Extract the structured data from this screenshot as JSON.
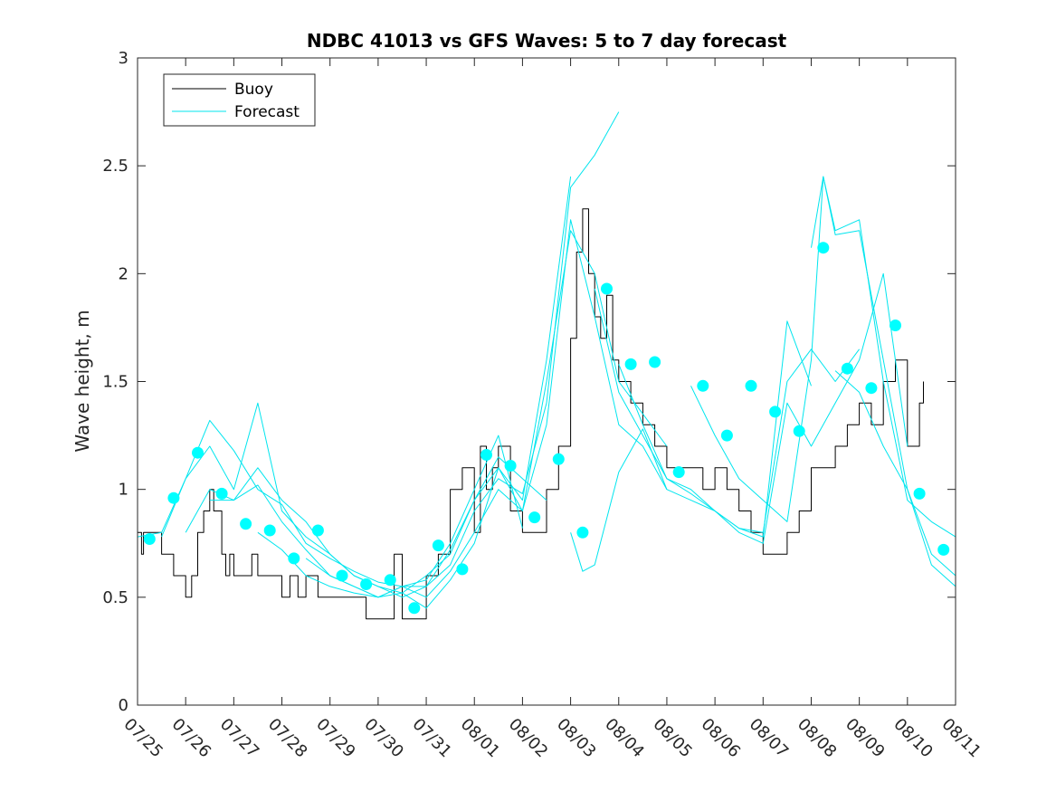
{
  "chart_data": {
    "type": "line",
    "title": "NDBC 41013 vs GFS Waves: 5 to 7 day forecast",
    "xlabel": "",
    "ylabel": "Wave height, m",
    "ylim": [
      0,
      3
    ],
    "xlim": [
      "2024-07-25",
      "2024-08-11"
    ],
    "x_tick_labels": [
      "07/25",
      "07/26",
      "07/27",
      "07/28",
      "07/29",
      "07/30",
      "07/31",
      "08/01",
      "08/02",
      "08/03",
      "08/04",
      "08/05",
      "08/06",
      "08/07",
      "08/08",
      "08/09",
      "08/10",
      "08/11"
    ],
    "y_ticks": [
      "0",
      "0.5",
      "1",
      "1.5",
      "2",
      "2.5",
      "3"
    ],
    "grid": false,
    "legend": {
      "position": "top-left",
      "entries": [
        "Buoy",
        "Forecast"
      ]
    },
    "colors": {
      "buoy": "#000000",
      "forecast": "#00e5ee",
      "marker": "#00ffff"
    },
    "series": [
      {
        "name": "Buoy",
        "x": [
          "2024-07-25 00:00",
          "2024-07-25 02:00",
          "2024-07-25 03:00",
          "2024-07-25 06:00",
          "2024-07-25 12:00",
          "2024-07-25 18:00",
          "2024-07-26 00:00",
          "2024-07-26 03:00",
          "2024-07-26 06:00",
          "2024-07-26 09:00",
          "2024-07-26 12:00",
          "2024-07-26 14:00",
          "2024-07-26 18:00",
          "2024-07-26 20:00",
          "2024-07-26 22:00",
          "2024-07-27 00:00",
          "2024-07-27 06:00",
          "2024-07-27 09:00",
          "2024-07-27 12:00",
          "2024-07-27 18:00",
          "2024-07-28 00:00",
          "2024-07-28 04:00",
          "2024-07-28 08:00",
          "2024-07-28 12:00",
          "2024-07-28 18:00",
          "2024-07-29 00:00",
          "2024-07-29 12:00",
          "2024-07-29 18:00",
          "2024-07-30 00:00",
          "2024-07-30 06:00",
          "2024-07-30 08:00",
          "2024-07-30 12:00",
          "2024-07-30 18:00",
          "2024-07-31 00:00",
          "2024-07-31 06:00",
          "2024-07-31 12:00",
          "2024-07-31 18:00",
          "2024-08-01 00:00",
          "2024-08-01 03:00",
          "2024-08-01 06:00",
          "2024-08-01 09:00",
          "2024-08-01 12:00",
          "2024-08-01 18:00",
          "2024-08-02 00:00",
          "2024-08-02 06:00",
          "2024-08-02 12:00",
          "2024-08-02 18:00",
          "2024-08-03 00:00",
          "2024-08-03 03:00",
          "2024-08-03 06:00",
          "2024-08-03 09:00",
          "2024-08-03 12:00",
          "2024-08-03 15:00",
          "2024-08-03 18:00",
          "2024-08-03 21:00",
          "2024-08-04 00:00",
          "2024-08-04 06:00",
          "2024-08-04 12:00",
          "2024-08-04 18:00",
          "2024-08-05 00:00",
          "2024-08-05 06:00",
          "2024-08-05 12:00",
          "2024-08-05 18:00",
          "2024-08-06 00:00",
          "2024-08-06 06:00",
          "2024-08-06 12:00",
          "2024-08-06 18:00",
          "2024-08-07 00:00",
          "2024-08-07 06:00",
          "2024-08-07 12:00",
          "2024-08-07 18:00",
          "2024-08-08 00:00",
          "2024-08-08 06:00",
          "2024-08-08 12:00",
          "2024-08-08 18:00",
          "2024-08-09 00:00",
          "2024-08-09 06:00",
          "2024-08-09 12:00",
          "2024-08-09 18:00",
          "2024-08-10 00:00",
          "2024-08-10 06:00",
          "2024-08-10 08:00"
        ],
        "values": [
          0.8,
          0.7,
          0.8,
          0.8,
          0.7,
          0.6,
          0.5,
          0.6,
          0.8,
          0.9,
          1.0,
          0.9,
          0.7,
          0.6,
          0.7,
          0.6,
          0.6,
          0.7,
          0.6,
          0.6,
          0.5,
          0.6,
          0.5,
          0.6,
          0.5,
          0.5,
          0.5,
          0.4,
          0.4,
          0.4,
          0.7,
          0.4,
          0.4,
          0.6,
          0.7,
          1.0,
          1.1,
          0.8,
          1.2,
          1.0,
          1.1,
          1.2,
          0.9,
          0.8,
          0.8,
          1.0,
          1.2,
          1.7,
          2.1,
          2.3,
          2.0,
          1.8,
          1.7,
          1.9,
          1.6,
          1.5,
          1.4,
          1.3,
          1.2,
          1.1,
          1.1,
          1.1,
          1.0,
          1.1,
          1.0,
          0.9,
          0.8,
          0.7,
          0.7,
          0.8,
          0.9,
          1.1,
          1.1,
          1.2,
          1.3,
          1.4,
          1.3,
          1.5,
          1.6,
          1.2,
          1.4,
          1.5
        ]
      },
      {
        "name": "Forecast",
        "x": [
          "2024-07-25 00:00",
          "2024-07-25 12:00",
          "2024-07-26 00:00",
          "2024-07-26 12:00",
          "2024-07-27 00:00",
          "2024-07-27 12:00",
          "2024-07-28 00:00",
          "2024-07-28 12:00",
          "2024-07-29 00:00",
          "2024-07-29 12:00",
          "2024-07-30 00:00",
          "2024-07-30 12:00",
          "2024-07-31 00:00",
          "2024-07-31 12:00",
          "2024-08-01 00:00",
          "2024-08-01 12:00",
          "2024-08-02 00:00"
        ],
        "values": [
          0.78,
          0.8,
          1.05,
          1.32,
          1.18,
          1.0,
          0.93,
          0.75,
          0.68,
          0.62,
          0.57,
          0.55,
          0.58,
          0.75,
          1.0,
          1.25,
          0.82
        ]
      },
      {
        "name": "Forecast",
        "x": [
          "2024-07-25 12:00",
          "2024-07-26 00:00",
          "2024-07-26 12:00",
          "2024-07-27 00:00",
          "2024-07-27 12:00",
          "2024-07-28 00:00",
          "2024-07-28 12:00",
          "2024-07-29 00:00",
          "2024-07-29 12:00",
          "2024-07-30 00:00",
          "2024-07-30 12:00",
          "2024-07-31 00:00",
          "2024-07-31 12:00",
          "2024-08-01 00:00",
          "2024-08-01 12:00",
          "2024-08-02 00:00",
          "2024-08-02 12:00"
        ],
        "values": [
          0.78,
          1.05,
          1.2,
          1.0,
          1.4,
          0.9,
          0.78,
          0.7,
          0.6,
          0.55,
          0.52,
          0.6,
          0.7,
          0.95,
          1.15,
          1.05,
          0.95
        ]
      },
      {
        "name": "Forecast",
        "x": [
          "2024-07-26 00:00",
          "2024-07-26 12:00",
          "2024-07-27 00:00",
          "2024-07-27 12:00",
          "2024-07-28 00:00",
          "2024-07-28 12:00",
          "2024-07-29 00:00",
          "2024-07-29 12:00",
          "2024-07-30 00:00",
          "2024-07-30 12:00",
          "2024-07-31 00:00",
          "2024-07-31 12:00",
          "2024-08-01 00:00",
          "2024-08-01 12:00",
          "2024-08-02 00:00",
          "2024-08-02 12:00",
          "2024-08-03 00:00"
        ],
        "values": [
          0.8,
          1.0,
          0.95,
          1.1,
          0.95,
          0.85,
          0.7,
          0.6,
          0.55,
          0.5,
          0.55,
          0.72,
          0.95,
          1.1,
          0.95,
          1.6,
          2.45
        ]
      },
      {
        "name": "Forecast",
        "x": [
          "2024-07-26 12:00",
          "2024-07-27 00:00",
          "2024-07-27 12:00",
          "2024-07-28 00:00",
          "2024-07-28 12:00",
          "2024-07-29 00:00",
          "2024-07-29 12:00",
          "2024-07-30 00:00",
          "2024-07-30 12:00",
          "2024-07-31 00:00",
          "2024-07-31 12:00",
          "2024-08-01 00:00",
          "2024-08-01 12:00",
          "2024-08-02 00:00",
          "2024-08-02 12:00",
          "2024-08-03 00:00",
          "2024-08-03 12:00",
          "2024-08-04 00:00"
        ],
        "values": [
          0.95,
          0.95,
          1.02,
          0.85,
          0.72,
          0.6,
          0.55,
          0.5,
          0.55,
          0.55,
          0.65,
          0.9,
          1.05,
          0.98,
          1.4,
          2.4,
          2.55,
          2.75
        ]
      },
      {
        "name": "Forecast",
        "x": [
          "2024-07-27 12:00",
          "2024-07-28 00:00",
          "2024-07-28 12:00",
          "2024-07-29 00:00",
          "2024-07-29 12:00",
          "2024-07-30 00:00",
          "2024-07-30 12:00",
          "2024-07-31 00:00",
          "2024-07-31 12:00",
          "2024-08-01 00:00",
          "2024-08-01 12:00",
          "2024-08-02 00:00",
          "2024-08-02 12:00",
          "2024-08-03 00:00",
          "2024-08-03 12:00",
          "2024-08-04 00:00",
          "2024-08-04 12:00",
          "2024-08-05 00:00"
        ],
        "values": [
          0.8,
          0.72,
          0.6,
          0.55,
          0.52,
          0.5,
          0.55,
          0.5,
          0.62,
          0.8,
          1.0,
          0.9,
          1.5,
          2.2,
          2.0,
          1.5,
          1.35,
          1.2
        ]
      },
      {
        "name": "Forecast",
        "x": [
          "2024-07-28 12:00",
          "2024-07-29 00:00",
          "2024-07-29 12:00",
          "2024-07-30 00:00",
          "2024-07-30 12:00",
          "2024-07-31 00:00",
          "2024-07-31 12:00",
          "2024-08-01 00:00",
          "2024-08-01 12:00",
          "2024-08-02 00:00",
          "2024-08-02 12:00",
          "2024-08-03 00:00",
          "2024-08-03 12:00",
          "2024-08-04 00:00",
          "2024-08-04 12:00",
          "2024-08-05 00:00"
        ],
        "values": [
          0.68,
          0.6,
          0.55,
          0.5,
          0.52,
          0.45,
          0.58,
          0.75,
          1.1,
          0.9,
          1.3,
          2.25,
          1.8,
          1.3,
          1.2,
          1.0
        ]
      },
      {
        "name": "Forecast",
        "x": [
          "2024-08-03 00:00",
          "2024-08-03 06:00",
          "2024-08-03 12:00",
          "2024-08-04 00:00",
          "2024-08-04 12:00",
          "2024-08-05 00:00",
          "2024-08-05 12:00",
          "2024-08-06 00:00",
          "2024-08-06 12:00",
          "2024-08-07 00:00",
          "2024-08-07 12:00",
          "2024-08-08 00:00"
        ],
        "values": [
          0.8,
          0.62,
          0.65,
          1.08,
          1.28,
          1.0,
          0.95,
          0.9,
          0.82,
          0.78,
          1.78,
          1.48
        ]
      },
      {
        "name": "Forecast",
        "x": [
          "2024-08-03 12:00",
          "2024-08-04 00:00",
          "2024-08-04 12:00",
          "2024-08-05 00:00",
          "2024-08-05 12:00",
          "2024-08-06 00:00",
          "2024-08-06 12:00",
          "2024-08-07 00:00",
          "2024-08-07 12:00",
          "2024-08-08 00:00",
          "2024-08-08 12:00",
          "2024-08-09 00:00"
        ],
        "values": [
          1.93,
          1.45,
          1.25,
          1.05,
          0.98,
          0.9,
          0.82,
          0.8,
          1.5,
          1.65,
          1.5,
          1.65
        ]
      },
      {
        "name": "Forecast",
        "x": [
          "2024-08-04 00:00",
          "2024-08-04 12:00",
          "2024-08-05 00:00",
          "2024-08-05 12:00",
          "2024-08-06 00:00",
          "2024-08-06 12:00",
          "2024-08-07 00:00",
          "2024-08-07 12:00",
          "2024-08-08 00:00",
          "2024-08-08 12:00",
          "2024-08-09 00:00",
          "2024-08-09 12:00",
          "2024-08-10 00:00"
        ],
        "values": [
          1.58,
          1.3,
          1.05,
          1.0,
          0.9,
          0.8,
          0.75,
          1.4,
          1.2,
          1.4,
          1.6,
          2.0,
          1.2
        ]
      },
      {
        "name": "Forecast",
        "x": [
          "2024-08-05 12:00",
          "2024-08-06 00:00",
          "2024-08-06 12:00",
          "2024-08-07 00:00",
          "2024-08-07 12:00",
          "2024-08-08 00:00",
          "2024-08-08 06:00",
          "2024-08-08 12:00",
          "2024-08-09 00:00",
          "2024-08-09 12:00",
          "2024-08-10 00:00",
          "2024-08-10 12:00",
          "2024-08-11 00:00"
        ],
        "values": [
          1.48,
          1.25,
          1.05,
          0.95,
          0.85,
          1.6,
          2.45,
          2.2,
          2.25,
          1.5,
          0.95,
          0.85,
          0.78
        ]
      },
      {
        "name": "Forecast",
        "x": [
          "2024-08-08 00:00",
          "2024-08-08 06:00",
          "2024-08-08 12:00",
          "2024-08-09 00:00",
          "2024-08-09 12:00",
          "2024-08-10 00:00",
          "2024-08-10 12:00",
          "2024-08-11 00:00"
        ],
        "values": [
          2.12,
          2.45,
          2.18,
          2.2,
          1.6,
          1.0,
          0.7,
          0.6
        ]
      },
      {
        "name": "Forecast",
        "x": [
          "2024-08-08 12:00",
          "2024-08-09 00:00",
          "2024-08-09 12:00",
          "2024-08-10 00:00",
          "2024-08-10 12:00",
          "2024-08-11 00:00"
        ],
        "values": [
          1.55,
          1.45,
          1.2,
          1.0,
          0.65,
          0.55
        ]
      }
    ],
    "markers": {
      "x": [
        "2024-07-25 06:00",
        "2024-07-25 18:00",
        "2024-07-26 06:00",
        "2024-07-26 18:00",
        "2024-07-27 06:00",
        "2024-07-27 18:00",
        "2024-07-28 06:00",
        "2024-07-28 18:00",
        "2024-07-29 06:00",
        "2024-07-29 18:00",
        "2024-07-30 06:00",
        "2024-07-30 18:00",
        "2024-07-31 06:00",
        "2024-07-31 18:00",
        "2024-08-01 06:00",
        "2024-08-01 18:00",
        "2024-08-02 06:00",
        "2024-08-02 18:00",
        "2024-08-03 06:00",
        "2024-08-03 18:00",
        "2024-08-04 06:00",
        "2024-08-04 18:00",
        "2024-08-05 06:00",
        "2024-08-05 18:00",
        "2024-08-06 06:00",
        "2024-08-06 18:00",
        "2024-08-07 06:00",
        "2024-08-07 18:00",
        "2024-08-08 06:00",
        "2024-08-08 18:00",
        "2024-08-09 06:00",
        "2024-08-09 18:00",
        "2024-08-10 06:00",
        "2024-08-10 18:00"
      ],
      "values": [
        0.77,
        0.96,
        1.17,
        0.98,
        0.84,
        0.81,
        0.68,
        0.81,
        0.6,
        0.56,
        0.58,
        0.45,
        0.74,
        0.63,
        1.16,
        1.11,
        0.87,
        1.14,
        0.8,
        1.93,
        1.58,
        1.59,
        1.08,
        1.48,
        1.25,
        1.48,
        1.36,
        1.27,
        2.12,
        1.56,
        1.47,
        1.76,
        0.98,
        0.72
      ]
    }
  }
}
